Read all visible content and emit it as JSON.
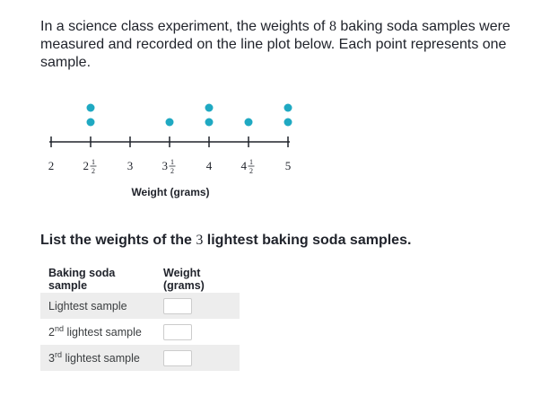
{
  "problem": {
    "intro_before": "In a science class experiment, the weights of ",
    "sample_count": "8",
    "intro_after": " baking soda samples were measured and recorded on the line plot below. Each point represents one sample."
  },
  "plot": {
    "xlabel": "Weight (grams)",
    "dot_color": "#1fa9c2",
    "ticks": [
      {
        "value": 2,
        "whole": "2",
        "num": "",
        "den": ""
      },
      {
        "value": 2.5,
        "whole": "2",
        "num": "1",
        "den": "2"
      },
      {
        "value": 3,
        "whole": "3",
        "num": "",
        "den": ""
      },
      {
        "value": 3.5,
        "whole": "3",
        "num": "1",
        "den": "2"
      },
      {
        "value": 4,
        "whole": "4",
        "num": "",
        "den": ""
      },
      {
        "value": 4.5,
        "whole": "4",
        "num": "1",
        "den": "2"
      },
      {
        "value": 5,
        "whole": "5",
        "num": "",
        "den": ""
      }
    ],
    "points": [
      {
        "x": 2.5,
        "count": 2
      },
      {
        "x": 3.5,
        "count": 1
      },
      {
        "x": 4,
        "count": 2
      },
      {
        "x": 4.5,
        "count": 1
      },
      {
        "x": 5,
        "count": 2
      }
    ]
  },
  "question": {
    "before": "List the weights of the ",
    "number": "3",
    "after": " lightest baking soda samples."
  },
  "table": {
    "headers": [
      "Baking soda sample",
      "Weight (grams)"
    ],
    "rows": [
      {
        "label": "Lightest sample",
        "value": ""
      },
      {
        "label_num": "2",
        "label_sup": "nd",
        "label_rest": " lightest sample",
        "value": ""
      },
      {
        "label_num": "3",
        "label_sup": "rd",
        "label_rest": " lightest sample",
        "value": ""
      }
    ]
  }
}
